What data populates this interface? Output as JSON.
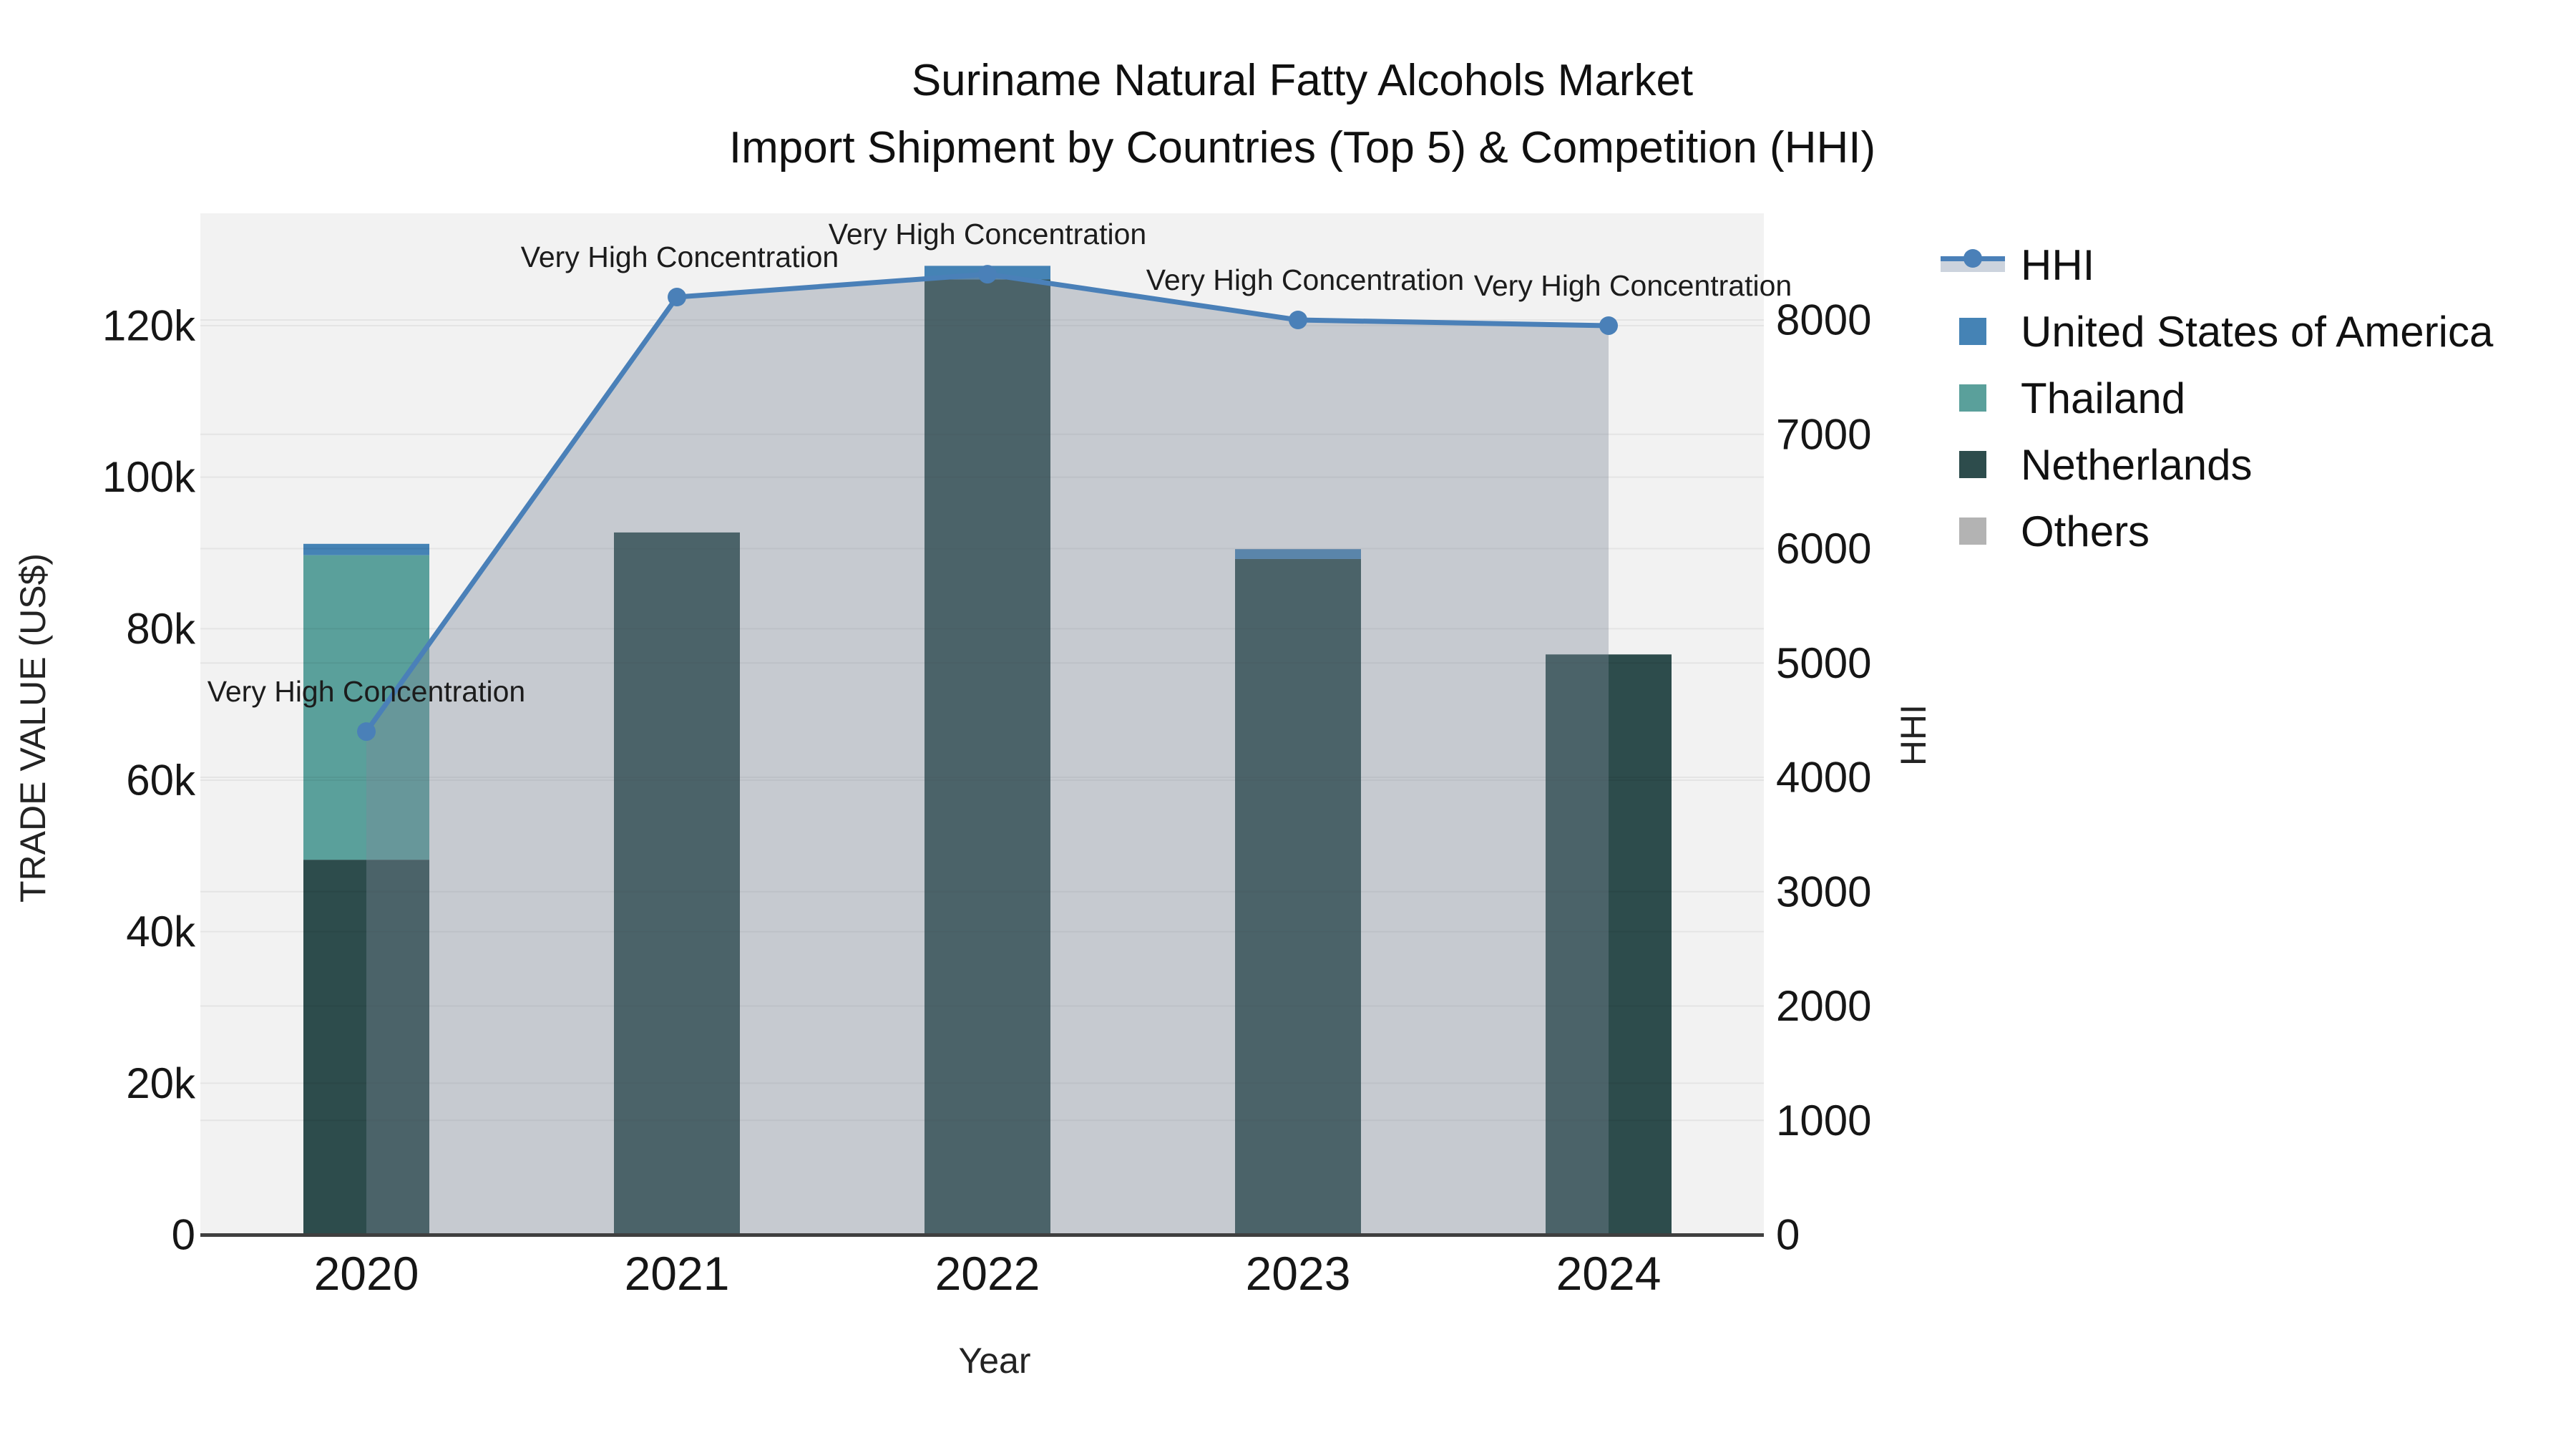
{
  "title": {
    "line1": "Suriname Natural Fatty Alcohols Market",
    "line2": "Import Shipment by Countries (Top 5) & Competition (HHI)"
  },
  "axes": {
    "x_label": "Year",
    "left_label": "TRADE VALUE (US$)",
    "right_label": "HHI"
  },
  "chart_data": {
    "type": "bar",
    "subtype": "stacked-bars-with-line",
    "categories": [
      "2020",
      "2021",
      "2022",
      "2023",
      "2024"
    ],
    "series": [
      {
        "name": "Netherlands",
        "color": "#2d4c4c",
        "values": [
          49500,
          92700,
          126100,
          89200,
          76600
        ]
      },
      {
        "name": "Thailand",
        "color": "#5aa09b",
        "values": [
          40200,
          0,
          0,
          0,
          0
        ]
      },
      {
        "name": "United States of America",
        "color": "#4583b5",
        "values": [
          1500,
          0,
          1800,
          1300,
          0
        ]
      },
      {
        "name": "Others",
        "color": "#b3b3b3",
        "values": [
          0,
          0,
          0,
          0,
          0
        ]
      }
    ],
    "line": {
      "name": "HHI",
      "axis": "right",
      "color": "#4a80b8",
      "fill_color": "rgba(125,138,152,0.38)",
      "values": [
        4400,
        8200,
        8400,
        8000,
        7950
      ]
    },
    "annotations": [
      "Very High Concentration",
      "Very High Concentration",
      "Very High Concentration",
      "Very High Concentration",
      "Very High Concentration"
    ],
    "left_axis": {
      "title": "TRADE VALUE (US$)",
      "range": [
        0,
        134800
      ],
      "ticks": [
        {
          "value": 0,
          "label": "0"
        },
        {
          "value": 20000,
          "label": "20k"
        },
        {
          "value": 40000,
          "label": "40k"
        },
        {
          "value": 60000,
          "label": "60k"
        },
        {
          "value": 80000,
          "label": "80k"
        },
        {
          "value": 100000,
          "label": "100k"
        },
        {
          "value": 120000,
          "label": "120k"
        }
      ]
    },
    "right_axis": {
      "title": "HHI",
      "range": [
        0,
        8940
      ],
      "ticks": [
        {
          "value": 0,
          "label": "0"
        },
        {
          "value": 1000,
          "label": "1000"
        },
        {
          "value": 2000,
          "label": "2000"
        },
        {
          "value": 3000,
          "label": "3000"
        },
        {
          "value": 4000,
          "label": "4000"
        },
        {
          "value": 5000,
          "label": "5000"
        },
        {
          "value": 6000,
          "label": "6000"
        },
        {
          "value": 7000,
          "label": "7000"
        },
        {
          "value": 8000,
          "label": "8000"
        }
      ]
    },
    "xlabel": "Year",
    "ylabel": "TRADE VALUE (US$)",
    "y2label": "HHI",
    "grid": true,
    "legend_position": "right"
  },
  "legend": {
    "items": [
      {
        "label": "HHI",
        "type": "line-marker-area",
        "color": "#4a80b8"
      },
      {
        "label": "United States of America",
        "type": "square",
        "color": "#4583b5"
      },
      {
        "label": "Thailand",
        "type": "square",
        "color": "#5aa09b"
      },
      {
        "label": "Netherlands",
        "type": "square",
        "color": "#2d4c4c"
      },
      {
        "label": "Others",
        "type": "square",
        "color": "#b3b3b3"
      }
    ]
  },
  "colors": {
    "plot_background": "#f2f2f2",
    "figure_background": "#ffffff",
    "gridline": "rgba(0,0,0,0.055)",
    "axis_line": "#3f3f3f",
    "tick_text": "#161616",
    "annotation_text": "#1c1c1c"
  }
}
